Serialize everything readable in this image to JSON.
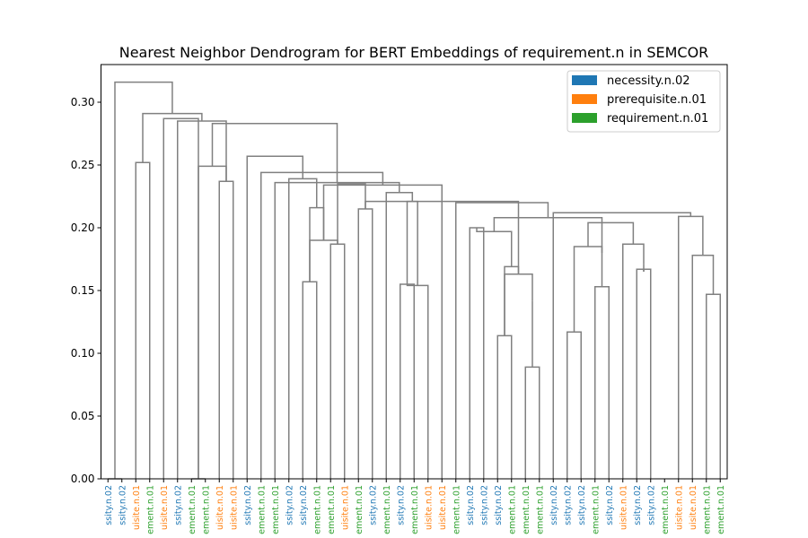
{
  "chart_data": {
    "type": "dendrogram",
    "title": "Nearest Neighbor Dendrogram for BERT Embeddings of requirement.n in SEMCOR",
    "xlabel": "",
    "ylabel": "",
    "ylim": [
      0,
      0.33
    ],
    "yticks": [
      "0.00",
      "0.05",
      "0.10",
      "0.15",
      "0.20",
      "0.25",
      "0.30"
    ],
    "grid": false,
    "legend_position": "top-right",
    "legend": [
      {
        "label": "necessity.n.02",
        "color": "#1f77b4"
      },
      {
        "label": "prerequisite.n.01",
        "color": "#ff7f0e"
      },
      {
        "label": "requirement.n.01",
        "color": "#2ca02c"
      }
    ],
    "link_color": "#808080",
    "leaves": [
      {
        "label": "ssity.n.02",
        "cls": "necessity.n.02"
      },
      {
        "label": "ssity.n.02",
        "cls": "necessity.n.02"
      },
      {
        "label": "uisite.n.01",
        "cls": "prerequisite.n.01"
      },
      {
        "label": "ement.n.01",
        "cls": "requirement.n.01"
      },
      {
        "label": "uisite.n.01",
        "cls": "prerequisite.n.01"
      },
      {
        "label": "ssity.n.02",
        "cls": "necessity.n.02"
      },
      {
        "label": "ement.n.01",
        "cls": "requirement.n.01"
      },
      {
        "label": "ement.n.01",
        "cls": "requirement.n.01"
      },
      {
        "label": "uisite.n.01",
        "cls": "prerequisite.n.01"
      },
      {
        "label": "uisite.n.01",
        "cls": "prerequisite.n.01"
      },
      {
        "label": "ssity.n.02",
        "cls": "necessity.n.02"
      },
      {
        "label": "ement.n.01",
        "cls": "requirement.n.01"
      },
      {
        "label": "ement.n.01",
        "cls": "requirement.n.01"
      },
      {
        "label": "ssity.n.02",
        "cls": "necessity.n.02"
      },
      {
        "label": "ssity.n.02",
        "cls": "necessity.n.02"
      },
      {
        "label": "ement.n.01",
        "cls": "requirement.n.01"
      },
      {
        "label": "ement.n.01",
        "cls": "requirement.n.01"
      },
      {
        "label": "uisite.n.01",
        "cls": "prerequisite.n.01"
      },
      {
        "label": "ement.n.01",
        "cls": "requirement.n.01"
      },
      {
        "label": "ssity.n.02",
        "cls": "necessity.n.02"
      },
      {
        "label": "ement.n.01",
        "cls": "requirement.n.01"
      },
      {
        "label": "ssity.n.02",
        "cls": "necessity.n.02"
      },
      {
        "label": "ement.n.01",
        "cls": "requirement.n.01"
      },
      {
        "label": "uisite.n.01",
        "cls": "prerequisite.n.01"
      },
      {
        "label": "uisite.n.01",
        "cls": "prerequisite.n.01"
      },
      {
        "label": "ement.n.01",
        "cls": "requirement.n.01"
      },
      {
        "label": "ssity.n.02",
        "cls": "necessity.n.02"
      },
      {
        "label": "ssity.n.02",
        "cls": "necessity.n.02"
      },
      {
        "label": "ssity.n.02",
        "cls": "necessity.n.02"
      },
      {
        "label": "ement.n.01",
        "cls": "requirement.n.01"
      },
      {
        "label": "ement.n.01",
        "cls": "requirement.n.01"
      },
      {
        "label": "ement.n.01",
        "cls": "requirement.n.01"
      },
      {
        "label": "ssity.n.02",
        "cls": "necessity.n.02"
      },
      {
        "label": "ssity.n.02",
        "cls": "necessity.n.02"
      },
      {
        "label": "ssity.n.02",
        "cls": "necessity.n.02"
      },
      {
        "label": "ement.n.01",
        "cls": "requirement.n.01"
      },
      {
        "label": "ssity.n.02",
        "cls": "necessity.n.02"
      },
      {
        "label": "uisite.n.01",
        "cls": "prerequisite.n.01"
      },
      {
        "label": "ssity.n.02",
        "cls": "necessity.n.02"
      },
      {
        "label": "ssity.n.02",
        "cls": "necessity.n.02"
      },
      {
        "label": "ement.n.01",
        "cls": "requirement.n.01"
      },
      {
        "label": "uisite.n.01",
        "cls": "prerequisite.n.01"
      },
      {
        "label": "uisite.n.01",
        "cls": "prerequisite.n.01"
      },
      {
        "label": "ement.n.01",
        "cls": "requirement.n.01"
      },
      {
        "label": "ement.n.01",
        "cls": "requirement.n.01"
      }
    ],
    "merges": [
      [
        0,
        1,
        0.0
      ],
      [
        2,
        3,
        0.252
      ],
      [
        6,
        7,
        0.0
      ],
      [
        8,
        9,
        0.237
      ],
      [
        6,
        8,
        0.249
      ],
      [
        14,
        15,
        0.157
      ],
      [
        16,
        17,
        0.187
      ],
      [
        15,
        16,
        0.19
      ],
      [
        14,
        15,
        0.216
      ],
      [
        13,
        14,
        0.239
      ],
      [
        18,
        19,
        0.215
      ],
      [
        17,
        18,
        0.235
      ],
      [
        21,
        22,
        0.155
      ],
      [
        22,
        23,
        0.154
      ],
      [
        21,
        22,
        0.221
      ],
      [
        20,
        21,
        0.228
      ],
      [
        26,
        27,
        0.2
      ],
      [
        28,
        29,
        0.114
      ],
      [
        30,
        31,
        0.089
      ],
      [
        30,
        31,
        0.142
      ],
      [
        29,
        30,
        0.163
      ],
      [
        28,
        29,
        0.169
      ],
      [
        27,
        28,
        0.197
      ],
      [
        33,
        34,
        0.117
      ],
      [
        35,
        36,
        0.153
      ],
      [
        35,
        36,
        0.18
      ],
      [
        34,
        35,
        0.185
      ],
      [
        38,
        39,
        0.167
      ],
      [
        38,
        39,
        0.165
      ],
      [
        38,
        39,
        0.171
      ],
      [
        37,
        38,
        0.187
      ],
      [
        35,
        37,
        0.204
      ],
      [
        27,
        36,
        0.208
      ],
      [
        43,
        44,
        0.147
      ],
      [
        42,
        43,
        0.178
      ],
      [
        41,
        42,
        0.209
      ],
      [
        32,
        41,
        0.212
      ],
      [
        25,
        36,
        0.22
      ],
      [
        19,
        30,
        0.221
      ],
      [
        16,
        24,
        0.234
      ],
      [
        12,
        20,
        0.236
      ],
      [
        11,
        16,
        0.244
      ],
      [
        10,
        13,
        0.257
      ],
      [
        6,
        12,
        0.283
      ],
      [
        5,
        9,
        0.285
      ],
      [
        4,
        7,
        0.287
      ],
      [
        3,
        5,
        0.291
      ],
      [
        0,
        3,
        0.316
      ]
    ]
  }
}
